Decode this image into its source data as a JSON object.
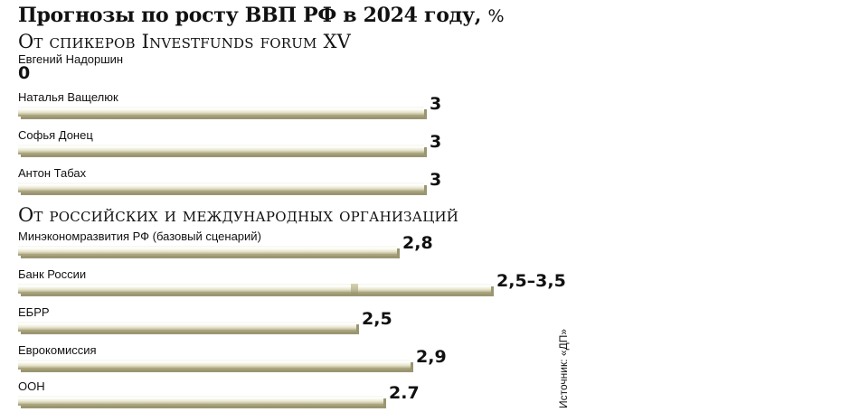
{
  "header": {
    "title": "Прогнозы по росту ВВП РФ в 2024 году,",
    "unit": "%"
  },
  "sections": [
    {
      "title": "От спикеров Investfunds forum XV"
    },
    {
      "title": "От российских и международных организаций"
    }
  ],
  "source": "Источник: «ДП»",
  "chart_data": {
    "type": "bar",
    "orientation": "horizontal",
    "title": "Прогнозы по росту ВВП РФ в 2024 году, %",
    "groups": [
      {
        "name": "От спикеров Investfunds forum XV",
        "items": [
          {
            "name": "Евгений Надоршин",
            "value": 0,
            "label": "0"
          },
          {
            "name": "Наталья Ващелюк",
            "value": 3,
            "label": "3"
          },
          {
            "name": "Софья Донец",
            "value": 3,
            "label": "3"
          },
          {
            "name": "Антон Табах",
            "value": 3,
            "label": "3"
          }
        ]
      },
      {
        "name": "От российских и международных организаций",
        "items": [
          {
            "name": "Минэкономразвития РФ (базовый сценарий)",
            "value": 2.8,
            "label": "2,8"
          },
          {
            "name": "Банк России",
            "range": [
              2.5,
              3.5
            ],
            "value": 3.5,
            "label": "2,5–3,5"
          },
          {
            "name": "ЕБРР",
            "value": 2.5,
            "label": "2,5"
          },
          {
            "name": "Еврокомиссия",
            "value": 2.9,
            "label": "2,9"
          },
          {
            "name": "ООН",
            "value": 2.7,
            "label": "2.7"
          }
        ]
      }
    ]
  }
}
